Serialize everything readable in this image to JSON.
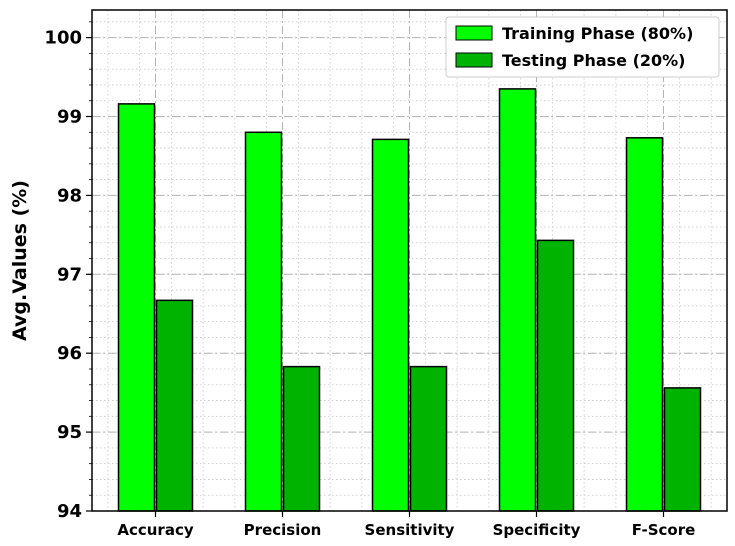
{
  "chart_data": {
    "type": "bar",
    "title": "",
    "xlabel": "",
    "ylabel": "Avg.Values (%)",
    "categories": [
      "Accuracy",
      "Precision",
      "Sensitivity",
      "Specificity",
      "F-Score"
    ],
    "series": [
      {
        "name": "Training Phase (80%)",
        "color": "#00ff00",
        "values": [
          99.16,
          98.8,
          98.71,
          99.35,
          98.73
        ]
      },
      {
        "name": "Testing Phase (20%)",
        "color": "#00b300",
        "values": [
          96.67,
          95.83,
          95.83,
          97.43,
          95.56
        ]
      }
    ],
    "ylim": [
      94,
      100.35
    ],
    "yticks": [
      94,
      95,
      96,
      97,
      98,
      99,
      100
    ],
    "grid": true,
    "legend_position": "top-right"
  }
}
